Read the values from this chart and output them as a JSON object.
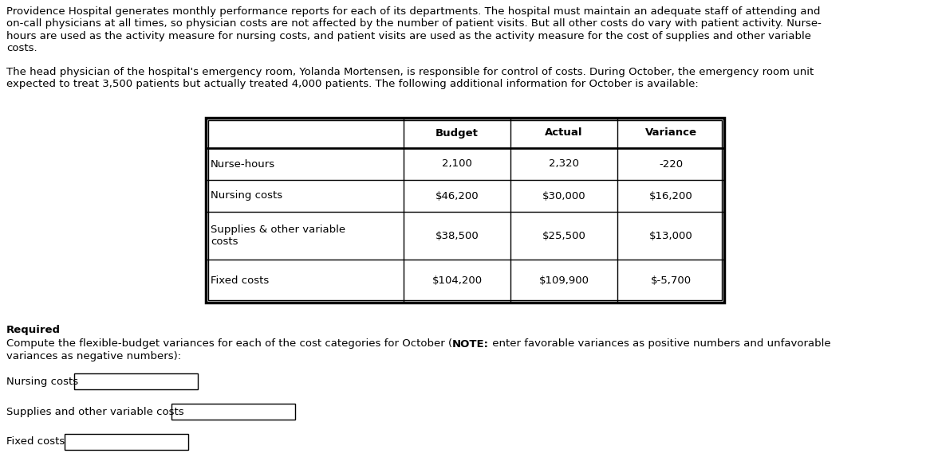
{
  "para1_lines": [
    "Providence Hospital generates monthly performance reports for each of its departments. The hospital must maintain an adequate staff of attending and",
    "on-call physicians at all times, so physician costs are not affected by the number of patient visits. But all other costs do vary with patient activity. Nurse-",
    "hours are used as the activity measure for nursing costs, and patient visits are used as the activity measure for the cost of supplies and other variable",
    "costs."
  ],
  "para2_lines": [
    "The head physician of the hospital's emergency room, Yolanda Mortensen, is responsible for control of costs. During October, the emergency room unit",
    "expected to treat 3,500 patients but actually treated 4,000 patients. The following additional information for October is available:"
  ],
  "table_headers": [
    "",
    "Budget",
    "Actual",
    "Variance"
  ],
  "table_rows": [
    [
      "Nurse-hours",
      "2,100",
      "2,320",
      "-220"
    ],
    [
      "Nursing costs",
      "$46,200",
      "$30,000",
      "$16,200"
    ],
    [
      "Supplies & other variable\ncosts",
      "$38,500",
      "$25,500",
      "$13,000"
    ],
    [
      "Fixed costs",
      "$104,200",
      "$109,900",
      "$-5,700"
    ]
  ],
  "required_label": "Required",
  "req_line1_normal": "Compute the flexible-budget variances for each of the cost categories for October (",
  "req_line1_bold": "NOTE:",
  "req_line1_end": " enter favorable variances as positive numbers and unfavorable",
  "req_line2": "variances as negative numbers):",
  "input_labels": [
    "Nursing costs",
    "Supplies and other variable costs",
    "Fixed costs"
  ],
  "bg_color": "#ffffff",
  "text_color": "#000000",
  "font_size": 9.5,
  "fig_width": 11.71,
  "fig_height": 5.79,
  "dpi": 100
}
